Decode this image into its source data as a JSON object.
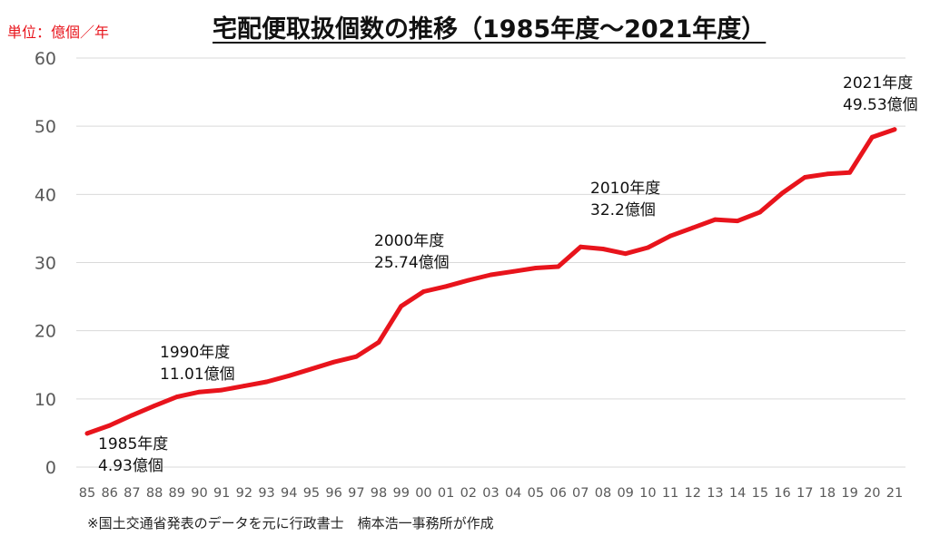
{
  "unit_label": "単位：億個／年",
  "source_note": "※国土交通省発表のデータを元に行政書士　楠本浩一事務所が作成",
  "colors": {
    "line": "#e8141c",
    "grid": "#d9d9d9",
    "tick_text": "#595959"
  },
  "chart_data": {
    "type": "line",
    "title": "宅配便取扱個数の推移（1985年度～2021年度）",
    "xlabel": "",
    "ylabel": "",
    "ylim": [
      0,
      60
    ],
    "yticks": [
      "0",
      "10",
      "20",
      "30",
      "40",
      "50",
      "60"
    ],
    "grid": true,
    "categories": [
      "85",
      "86",
      "87",
      "88",
      "89",
      "90",
      "91",
      "92",
      "93",
      "94",
      "95",
      "96",
      "97",
      "98",
      "99",
      "00",
      "01",
      "02",
      "03",
      "04",
      "05",
      "06",
      "07",
      "08",
      "09",
      "10",
      "11",
      "12",
      "13",
      "14",
      "15",
      "16",
      "17",
      "18",
      "19",
      "20",
      "21"
    ],
    "series": [
      {
        "values": [
          4.93,
          6.1,
          7.6,
          9.0,
          10.3,
          11.01,
          11.3,
          11.9,
          12.5,
          13.4,
          14.4,
          15.4,
          16.2,
          18.3,
          23.6,
          25.74,
          26.5,
          27.4,
          28.2,
          28.7,
          29.2,
          29.4,
          32.3,
          32.0,
          31.3,
          32.2,
          33.9,
          35.1,
          36.3,
          36.1,
          37.4,
          40.2,
          42.5,
          43.0,
          43.2,
          48.4,
          49.53
        ]
      }
    ],
    "annotations": [
      {
        "year": "1985年度",
        "value": "4.93億個"
      },
      {
        "year": "1990年度",
        "value": "11.01億個"
      },
      {
        "year": "2000年度",
        "value": "25.74億個"
      },
      {
        "year": "2010年度",
        "value": "32.2億個"
      },
      {
        "year": "2021年度",
        "value": "49.53億個"
      }
    ]
  }
}
